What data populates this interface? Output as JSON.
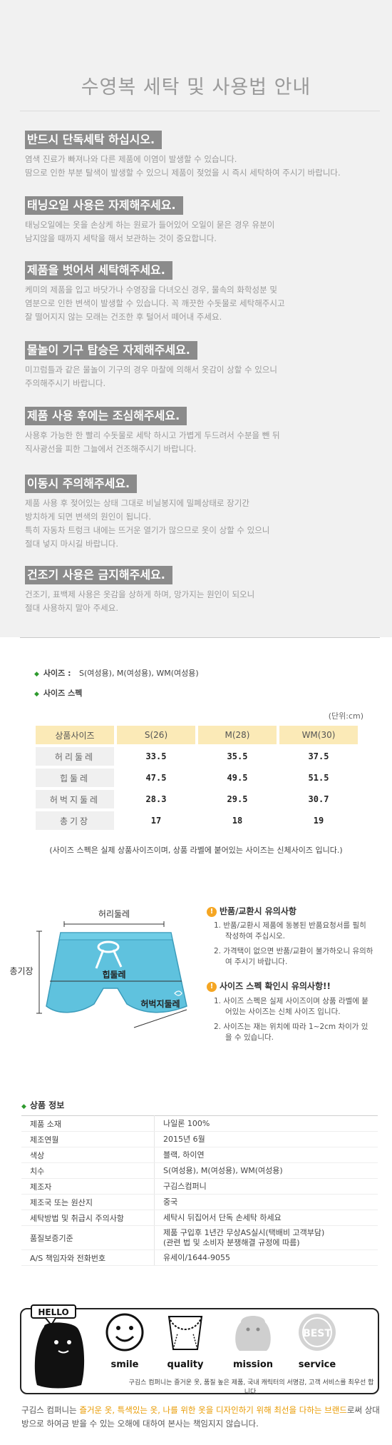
{
  "care": {
    "title": "수영복 세탁 및 사용법 안내",
    "items": [
      {
        "heading": "반드시 단독세탁 하십시오.",
        "text": "염색 진료가 빠져나와 다른 제품에 이염이 발생할 수 있습니다.\n땀으로 인한 부분 탈색이 발생할 수 있으니 제품이 젖었을 시 즉시  세탁하여 주시기 바랍니다."
      },
      {
        "heading": "태닝오일 사용은 자제해주세요.",
        "text": "태닝오일에는 옷을 손상케 하는 원료가 들어있어 오일이 묻은 경우 유분이\n남지않을 때까지 세탁을 해서 보관하는 것이 중요합니다."
      },
      {
        "heading": "제품을 벗어서 세탁해주세요.",
        "text": "케미의 제품을 입고 바닷가나 수영장을 다녀오신 경우, 물속의 화학성분 및\n염분으로 인한 변색이 발생할 수 있습니다. 꼭 깨끗한 수돗물로 세탁해주시고\n잘 떨어지지 않는 모래는 건조한 후 털어서 떼어내 주세요."
      },
      {
        "heading": "물놀이 기구 탑승은 자제해주세요.",
        "text": "미끄럼틀과 같은 물놀이 기구의 경우 마찰에 의해서 옷감이 상할 수 있으니\n주의해주시기 바랍니다."
      },
      {
        "heading": "제품 사용 후에는 조심해주세요.",
        "text": "사용후 가능한 한 빨리 수돗물로 세탁 하시고 가볍게 두드려서 수분을 뺀 뒤\n직사광선을 피한 그늘에서 건조해주시기 바랍니다."
      },
      {
        "heading": "이동시 주의해주세요.",
        "text": "제품 사용 후 젖어있는 상태 그대로 비닐봉지에 밀폐상태로 장기간\n방치하게 되면 변색의 원인이 됩니다.\n특히 자동차 트렁크 내에는 뜨거운 열기가 많으므로 옷이 상할 수 있으니\n절대 넣지 마시길 바랍니다."
      },
      {
        "heading": "건조기 사용은 금지해주세요.",
        "text": "건조기, 표백제 사용은 옷감을 상하게 하며, 망가지는 원인이 되오니\n절대 사용하지 말아 주세요."
      }
    ]
  },
  "size": {
    "sizes_label": "사이즈 :",
    "sizes_value": "S(여성용), M(여성용), WM(여성용)",
    "spec_label": "사이즈 스펙",
    "unit": "(단위:cm)",
    "header": [
      "상품사이즈",
      "S(26)",
      "M(28)",
      "WM(30)"
    ],
    "rows": [
      {
        "label": "허리둘레",
        "values": [
          "33.5",
          "35.5",
          "37.5"
        ]
      },
      {
        "label": "힙둘레",
        "values": [
          "47.5",
          "49.5",
          "51.5"
        ]
      },
      {
        "label": "허벅지둘레",
        "values": [
          "28.3",
          "29.5",
          "30.7"
        ]
      },
      {
        "label": "총기장",
        "values": [
          "17",
          "18",
          "19"
        ]
      }
    ],
    "note": "(사이즈 스펙은 실제 상품사이즈이며, 상품 라벨에 붙어있는 사이즈는 신체사이즈 입니다.)"
  },
  "diagram": {
    "labels": {
      "waist": "허리둘레",
      "total": "총기장",
      "hip": "힙둘레",
      "thigh": "허벅지둘레"
    },
    "product_color": "#5fc2de"
  },
  "notices": [
    {
      "title": "반품/교환시 유의사항",
      "items": [
        "1. 반품/교환시 제품에 동봉된 반품요청서를 필히 작성하여 주십시오.",
        "2. 가격택이 없으면 반품/교환이 불가하오니 유의하여 주시기 바랍니다."
      ]
    },
    {
      "title": "사이즈 스펙 확인시 유의사항!!",
      "items": [
        "1. 사이즈 스펙은 실제 사이즈이며 상품 라벨에 붙어있는 사이즈는 신체 사이즈 입니다.",
        "2. 사이즈는 재는 위치에 따라 1~2cm 차이가 있을 수 있습니다."
      ]
    }
  ],
  "product_info": {
    "heading": "상품 정보",
    "rows": [
      {
        "k": "제품 소재",
        "v": "나일론 100%"
      },
      {
        "k": "제조연월",
        "v": "2015년 6월"
      },
      {
        "k": "색상",
        "v": "블랙, 하이연"
      },
      {
        "k": "치수",
        "v": "S(여성용), M(여성용), WM(여성용)"
      },
      {
        "k": "제조자",
        "v": "구김스컴퍼니"
      },
      {
        "k": "제조국 또는 원산지",
        "v": "중국"
      },
      {
        "k": "세탁방법 및 취급시 주의사항",
        "v": "세탁시 뒤집어서 단독 손세탁 하세요"
      },
      {
        "k": "품질보증기준",
        "v": "제품 구입후 1년간 무상AS실시(택배비 고객부담)\n(관련 법 및 소비자 분쟁해결 규정에 따름)"
      },
      {
        "k": "A/S 책임자와 전화번호",
        "v": "유세이/1644-9055"
      }
    ]
  },
  "brand": {
    "hello": "HELLO",
    "items": [
      "smile",
      "quality",
      "mission",
      "service"
    ],
    "best": "BEST",
    "caption": "구김스 컴퍼니는 즐거운 옷, 품질 높은 제품, 국내 캐릭터의 서명감, 고객 서비스를 최우선 합니다."
  },
  "footer": {
    "part1": "구김스 컴퍼니는 ",
    "highlight": "즐거운 옷, 특색있는 옷, 나를 위한 옷을 디자인하기 위해 최선을 다하는 브랜드",
    "part2": "로써 상대방으로 하여금 받을 수 있는 오해에 대하여 본사는 책임지지 않습니다."
  }
}
